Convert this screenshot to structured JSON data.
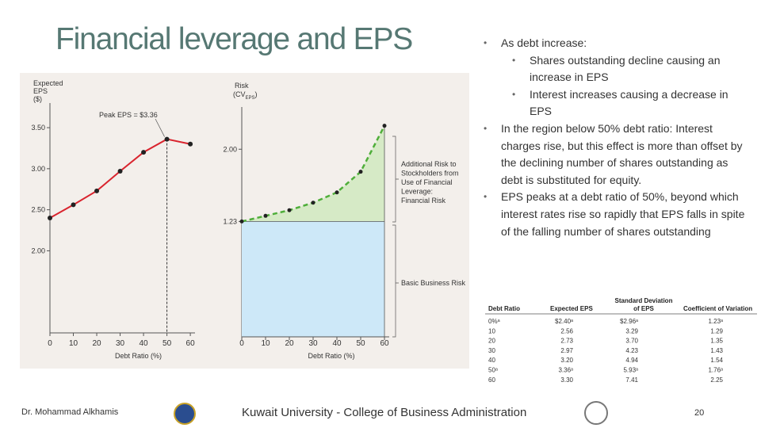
{
  "title": "Financial leverage and EPS",
  "chart_data": [
    {
      "type": "line",
      "ylabel": [
        "Expected",
        "EPS",
        "($)"
      ],
      "xlabel": "Debt Ratio (%)",
      "x": [
        0,
        10,
        20,
        30,
        40,
        50,
        60
      ],
      "values": [
        2.4,
        2.56,
        2.73,
        2.97,
        3.2,
        3.36,
        3.3
      ],
      "color": "#d9242e",
      "xlim": [
        0,
        62
      ],
      "xticks": [
        0,
        10,
        20,
        30,
        40,
        50,
        60
      ],
      "ylim": [
        1.0,
        3.8
      ],
      "yticks": [
        {
          "value": 2,
          "label": "2.00"
        },
        {
          "value": 2.5,
          "label": "2.50"
        },
        {
          "value": 3,
          "label": "3.00"
        },
        {
          "value": 3.5,
          "label": "3.50"
        }
      ],
      "annotation": "Peak EPS = $3.36"
    },
    {
      "type": "area",
      "ylabel": "Risk",
      "ylabel_open": "(CV",
      "ylabel_sub": "EPS",
      "ylabel_close": ")",
      "xlabel": "Debt Ratio (%)",
      "x": [
        0,
        10,
        20,
        30,
        40,
        50,
        60
      ],
      "values": [
        1.23,
        1.29,
        1.35,
        1.43,
        1.54,
        1.76,
        2.25
      ],
      "color": "#4fae3a",
      "area_color": "#d6eac6",
      "base_color": "#cde8f8",
      "xlim": [
        0,
        62
      ],
      "xticks": [
        0,
        10,
        20,
        30,
        40,
        50,
        60
      ],
      "ylim": [
        0,
        2.45
      ],
      "yticks": [
        1.23,
        {
          "value": 2,
          "label": "2.00"
        }
      ],
      "annotation_lines": [
        "Additional Risk to",
        "Stockholders from",
        "Use of Financial",
        "Leverage:",
        "Financial Risk"
      ],
      "base_annotation": "Basic Business Risk"
    }
  ],
  "bullets": [
    {
      "text": "As debt increase:",
      "children": [
        "Shares outstanding decline causing an increase in EPS",
        "Interest increases causing a decrease in EPS"
      ]
    },
    {
      "text": "In the region below 50% debt ratio: Interest charges rise, but this effect is more than offset by the declining number of shares outstanding as debt is substituted for equity.",
      "children": []
    },
    {
      "text": "EPS peaks at a debt ratio of 50%, beyond which interest rates rise so rapidly that EPS falls in spite of the falling number of shares outstanding",
      "children": []
    }
  ],
  "table": {
    "headers": [
      "Debt Ratio",
      "Expected EPS",
      "Standard Deviation of EPS",
      "Coefficient of Variation"
    ],
    "rows": [
      [
        "0%ᵃ",
        "$2.40ᵃ",
        "$2.96ᵃ",
        "1.23ᵃ"
      ],
      [
        "10",
        "2.56",
        "3.29",
        "1.29"
      ],
      [
        "20",
        "2.73",
        "3.70",
        "1.35"
      ],
      [
        "30",
        "2.97",
        "4.23",
        "1.43"
      ],
      [
        "40",
        "3.20",
        "4.94",
        "1.54"
      ],
      [
        "50ᵃ",
        "3.36ᵃ",
        "5.93ᵃ",
        "1.76ᵃ"
      ],
      [
        "60",
        "3.30",
        "7.41",
        "2.25"
      ]
    ]
  },
  "footer": {
    "author": "Dr. Mohammad Alkhamis",
    "institution": "Kuwait University - College of Business Administration",
    "page": "20"
  }
}
